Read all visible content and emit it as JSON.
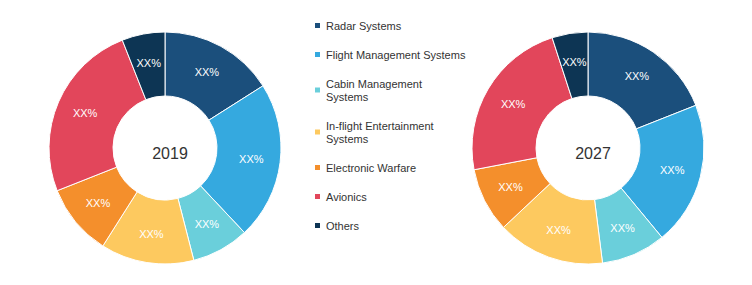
{
  "chart_data": [
    {
      "type": "pie",
      "title": "2019",
      "categories": [
        "Radar Systems",
        "Flight Management Systems",
        "Cabin Management Systems",
        "In-flight Entertainment Systems",
        "Electronic Warfare",
        "Avionics",
        "Others"
      ],
      "values": [
        16,
        22,
        8,
        13,
        10,
        25,
        6
      ],
      "value_labels": [
        "XX%",
        "XX%",
        "XX%",
        "XX%",
        "XX%",
        "XX%",
        "XX%"
      ],
      "colors": [
        "#1b4f7c",
        "#35a9df",
        "#6acfdb",
        "#fdc95f",
        "#f48f2c",
        "#e2465b",
        "#0d3554"
      ],
      "data_labels": true,
      "legend": "right"
    },
    {
      "type": "pie",
      "title": "2027",
      "categories": [
        "Radar Systems",
        "Flight Management Systems",
        "Cabin Management Systems",
        "In-flight Entertainment Systems",
        "Electronic Warfare",
        "Avionics",
        "Others"
      ],
      "values": [
        19,
        20,
        9,
        15,
        9,
        23,
        5
      ],
      "value_labels": [
        "XX%",
        "XX%",
        "XX%",
        "XX%",
        "XX%",
        "XX%",
        "XX%"
      ],
      "colors": [
        "#1b4f7c",
        "#35a9df",
        "#6acfdb",
        "#fdc95f",
        "#f48f2c",
        "#e2465b",
        "#0d3554"
      ],
      "data_labels": true
    }
  ]
}
